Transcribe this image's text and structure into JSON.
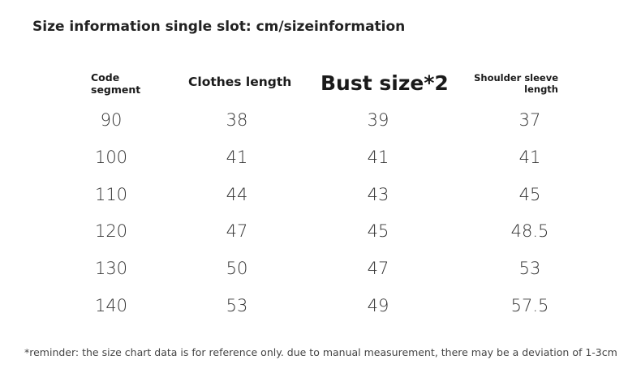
{
  "header": {
    "title": "Size information single slot: cm/sizeinformation"
  },
  "table": {
    "columns": [
      "Code segment",
      "Clothes length",
      "Bust size*2",
      "Shoulder sleeve length"
    ],
    "rows": [
      [
        90,
        38,
        39,
        37
      ],
      [
        100,
        41,
        41,
        41
      ],
      [
        110,
        44,
        43,
        45
      ],
      [
        120,
        47,
        45,
        48.5
      ],
      [
        130,
        50,
        47,
        53
      ],
      [
        140,
        53,
        49,
        57.5
      ]
    ]
  },
  "footer": {
    "note": "*reminder: the size chart data is for reference only. due to manual measurement, there may be a deviation of 1-3cm"
  }
}
